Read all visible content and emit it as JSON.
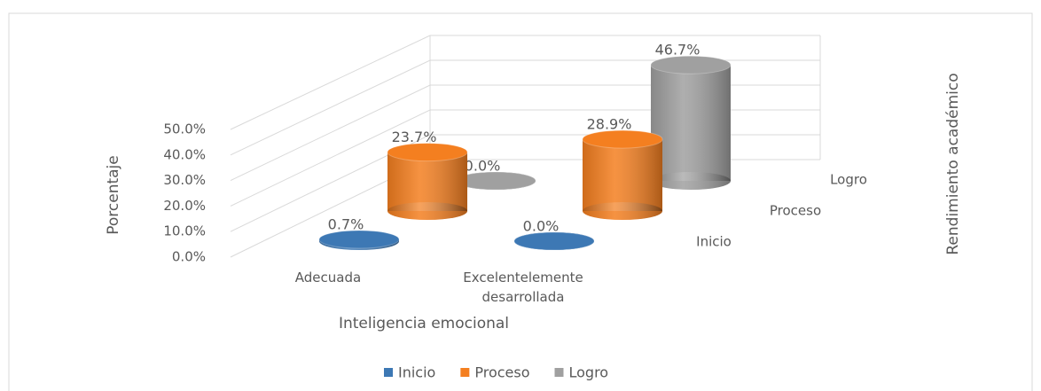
{
  "chart_data": {
    "type": "bar3d",
    "categories": [
      "Adecuada",
      "Excelentelemente desarrollada"
    ],
    "series": [
      {
        "name": "Inicio",
        "color": "#3d78b4",
        "values": [
          0.7,
          0.0
        ],
        "value_labels": [
          "0.7%",
          "0.0%"
        ]
      },
      {
        "name": "Proceso",
        "color": "#f47f20",
        "values": [
          23.7,
          28.9
        ],
        "value_labels": [
          "23.7%",
          "28.9%"
        ]
      },
      {
        "name": "Logro",
        "color": "#a0a0a0",
        "values": [
          0.0,
          46.7
        ],
        "value_labels": [
          "0.0%",
          "46.7%"
        ]
      }
    ],
    "ylim": [
      0,
      50
    ],
    "yticks": [
      {
        "value": 0,
        "label": "0.0%"
      },
      {
        "value": 10,
        "label": "10.0%"
      },
      {
        "value": 20,
        "label": "20.0%"
      },
      {
        "value": 30,
        "label": "30.0%"
      },
      {
        "value": 40,
        "label": "40.0%"
      },
      {
        "value": 50,
        "label": "50.0%"
      }
    ],
    "xlabel": "Inteligencia emocional",
    "ylabel": "Porcentaje",
    "zlabel": "Rendimiento académico",
    "grid": true,
    "legend": "bottom"
  }
}
